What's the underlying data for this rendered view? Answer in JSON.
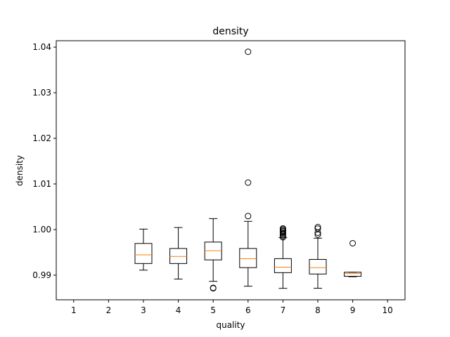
{
  "chart_data": {
    "type": "boxplot",
    "title": "density",
    "xlabel": "quality",
    "ylabel": "density",
    "categories": [
      "1",
      "2",
      "3",
      "4",
      "5",
      "6",
      "7",
      "8",
      "9",
      "10"
    ],
    "yticks": [
      "0.99",
      "1.00",
      "1.01",
      "1.02",
      "1.03",
      "1.04"
    ],
    "ylim": [
      0.9846,
      1.0414
    ],
    "grid": false,
    "colors": {
      "box": "#000000",
      "median": "#ff7f0e",
      "flier": "#000000"
    },
    "boxes": [
      {
        "x": 3,
        "whislo": 0.9911,
        "q1": 0.99255,
        "med": 0.99445,
        "q3": 0.99695,
        "whishi": 1.0001,
        "fliers": []
      },
      {
        "x": 4,
        "whislo": 0.98915,
        "q1": 0.99255,
        "med": 0.9941,
        "q3": 0.99585,
        "whishi": 1.00045,
        "fliers": []
      },
      {
        "x": 5,
        "whislo": 0.98865,
        "q1": 0.99335,
        "med": 0.99535,
        "q3": 0.99725,
        "whishi": 1.0024,
        "fliers": [
          0.98713,
          0.98722
        ]
      },
      {
        "x": 6,
        "whislo": 0.98758,
        "q1": 0.99165,
        "med": 0.9936,
        "q3": 0.99585,
        "whishi": 1.0018,
        "fliers": [
          1.00295,
          1.0103,
          1.03898
        ]
      },
      {
        "x": 7,
        "whislo": 0.98711,
        "q1": 0.99055,
        "med": 0.99175,
        "q3": 0.99362,
        "whishi": 0.99825,
        "fliers": [
          0.9983,
          0.99855,
          0.9989,
          0.99915,
          0.99935,
          0.9996,
          0.9998,
          1.00005,
          1.00025
        ]
      },
      {
        "x": 8,
        "whislo": 0.98713,
        "q1": 0.99025,
        "med": 0.99165,
        "q3": 0.99345,
        "whishi": 0.9981,
        "fliers": [
          0.9989,
          0.9993,
          1.0002,
          1.00055
        ]
      },
      {
        "x": 9,
        "whislo": 0.98965,
        "q1": 0.98975,
        "med": 0.99035,
        "q3": 0.99065,
        "whishi": 0.99065,
        "fliers": [
          0.997
        ]
      }
    ]
  }
}
